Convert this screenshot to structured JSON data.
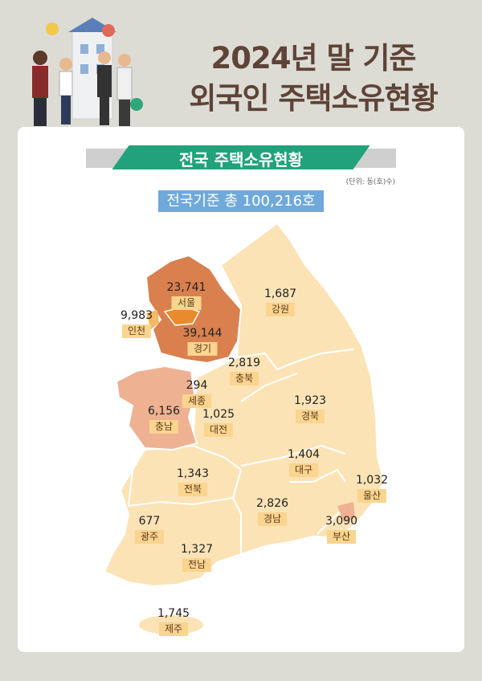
{
  "title": {
    "line1": "2024년 말 기준",
    "line2": "외국인 주택소유현황"
  },
  "banner": "전국 주택소유현황",
  "unit": "(단위: 동(호)수)",
  "total": "전국기준 총  100,216호",
  "colors": {
    "very_high": "#d9804e",
    "seoul": "#e98b2c",
    "high": "#eeb191",
    "low": "#fbe3b6",
    "label_bg": "#fbd48f",
    "banner": "#22a27a",
    "total_box": "#6fa9dc",
    "title": "#5e4337"
  },
  "regions": [
    {
      "name": "서울",
      "value": "23,741"
    },
    {
      "name": "인천",
      "value": "9,983"
    },
    {
      "name": "경기",
      "value": "39,144"
    },
    {
      "name": "강원",
      "value": "1,687"
    },
    {
      "name": "충북",
      "value": "2,819"
    },
    {
      "name": "세종",
      "value": "294"
    },
    {
      "name": "충남",
      "value": "6,156"
    },
    {
      "name": "대전",
      "value": "1,025"
    },
    {
      "name": "경북",
      "value": "1,923"
    },
    {
      "name": "대구",
      "value": "1,404"
    },
    {
      "name": "울산",
      "value": "1,032"
    },
    {
      "name": "전북",
      "value": "1,343"
    },
    {
      "name": "경남",
      "value": "2,826"
    },
    {
      "name": "부산",
      "value": "3,090"
    },
    {
      "name": "광주",
      "value": "677"
    },
    {
      "name": "전남",
      "value": "1,327"
    },
    {
      "name": "제주",
      "value": "1,745"
    }
  ]
}
